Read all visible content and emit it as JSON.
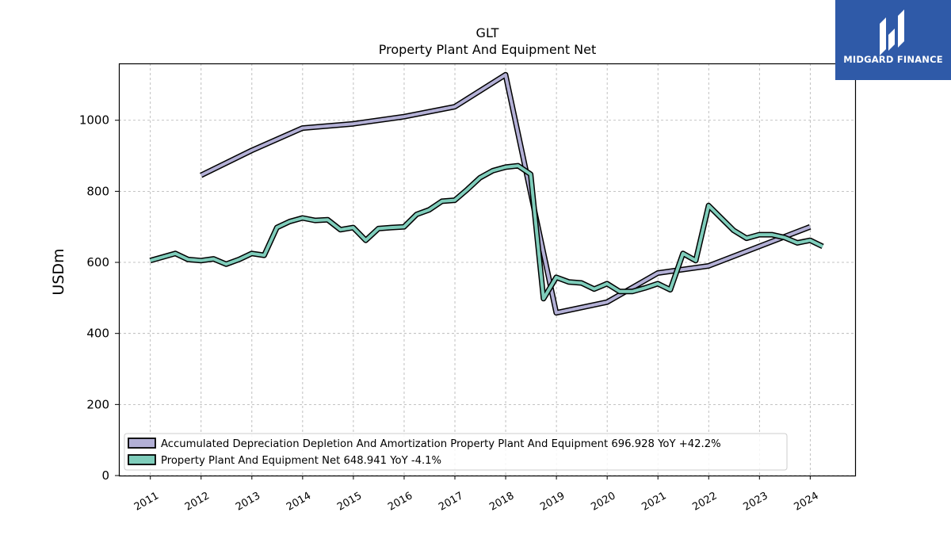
{
  "chart_data": {
    "type": "line",
    "title": "GLT",
    "subtitle": "Property Plant And Equipment Net",
    "ylabel": "USDm",
    "xlabel": "",
    "ylim": [
      0,
      1160
    ],
    "xlim": [
      2010.38,
      2024.9
    ],
    "yticks": [
      0,
      200,
      400,
      600,
      800,
      1000
    ],
    "xticks": [
      "2011",
      "2012",
      "2013",
      "2014",
      "2015",
      "2016",
      "2017",
      "2018",
      "2019",
      "2020",
      "2021",
      "2022",
      "2023",
      "2024"
    ],
    "grid": true,
    "legend_position": "bottom-left",
    "series": [
      {
        "name": "Accumulated Depreciation Depletion And Amortization Property Plant And Equipment",
        "legend_label": "Accumulated Depreciation Depletion And Amortization Property Plant And Equipment  696.928 YoY +42.2%",
        "color": "#b3b0d6",
        "points": [
          [
            "2011-12-31",
            845
          ],
          [
            "2012-12-31",
            915
          ],
          [
            "2013-12-31",
            978
          ],
          [
            "2014-12-31",
            990
          ],
          [
            "2015-12-31",
            1010
          ],
          [
            "2016-12-31",
            1038
          ],
          [
            "2017-12-31",
            1128
          ],
          [
            "2018-12-31",
            458
          ],
          [
            "2019-12-31",
            488
          ],
          [
            "2020-12-31",
            570
          ],
          [
            "2021-12-31",
            590
          ],
          [
            "2023-12-31",
            700
          ]
        ]
      },
      {
        "name": "Property Plant And Equipment Net",
        "legend_label": "Property Plant And Equipment Net  648.941 YoY -4.1%",
        "color": "#7fcdbb",
        "points": [
          [
            "2010-12-31",
            605
          ],
          [
            "2011-06-30",
            625
          ],
          [
            "2011-09-30",
            608
          ],
          [
            "2011-12-31",
            605
          ],
          [
            "2012-03-31",
            610
          ],
          [
            "2012-06-30",
            595
          ],
          [
            "2012-09-30",
            608
          ],
          [
            "2012-12-31",
            625
          ],
          [
            "2013-03-31",
            620
          ],
          [
            "2013-06-30",
            698
          ],
          [
            "2013-09-30",
            715
          ],
          [
            "2013-12-31",
            725
          ],
          [
            "2014-03-31",
            718
          ],
          [
            "2014-06-30",
            720
          ],
          [
            "2014-09-30",
            692
          ],
          [
            "2014-12-31",
            698
          ],
          [
            "2015-03-31",
            662
          ],
          [
            "2015-06-30",
            695
          ],
          [
            "2015-09-30",
            698
          ],
          [
            "2015-12-31",
            700
          ],
          [
            "2016-03-31",
            735
          ],
          [
            "2016-06-30",
            748
          ],
          [
            "2016-09-30",
            772
          ],
          [
            "2016-12-31",
            775
          ],
          [
            "2017-03-31",
            805
          ],
          [
            "2017-06-30",
            838
          ],
          [
            "2017-09-30",
            858
          ],
          [
            "2017-12-31",
            868
          ],
          [
            "2018-03-31",
            872
          ],
          [
            "2018-06-30",
            848
          ],
          [
            "2018-09-30",
            498
          ],
          [
            "2018-12-31",
            558
          ],
          [
            "2019-03-31",
            545
          ],
          [
            "2019-06-30",
            542
          ],
          [
            "2019-09-30",
            525
          ],
          [
            "2019-12-31",
            540
          ],
          [
            "2020-03-31",
            518
          ],
          [
            "2020-06-30",
            518
          ],
          [
            "2020-09-30",
            528
          ],
          [
            "2020-12-31",
            540
          ],
          [
            "2021-03-31",
            523
          ],
          [
            "2021-06-30",
            625
          ],
          [
            "2021-09-30",
            605
          ],
          [
            "2021-12-31",
            760
          ],
          [
            "2022-03-31",
            725
          ],
          [
            "2022-06-30",
            690
          ],
          [
            "2022-09-30",
            668
          ],
          [
            "2022-12-31",
            678
          ],
          [
            "2023-03-31",
            678
          ],
          [
            "2023-06-30",
            670
          ],
          [
            "2023-09-30",
            655
          ],
          [
            "2023-12-31",
            662
          ],
          [
            "2024-03-31",
            645
          ]
        ]
      }
    ]
  },
  "watermark": {
    "text": "MIDGARD FINANCE",
    "background": "#2f5aa8"
  }
}
